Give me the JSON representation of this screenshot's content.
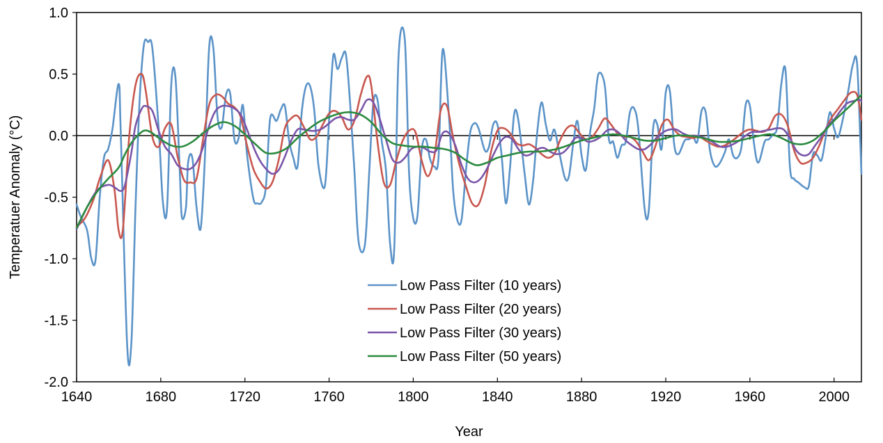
{
  "chart_data": {
    "type": "line",
    "title": "",
    "xlabel": "Year",
    "ylabel": "Temperatuer Anomaly (°C)",
    "xlim": [
      1640,
      2013
    ],
    "ylim": [
      -2.0,
      1.0
    ],
    "x_ticks": [
      1640,
      1680,
      1720,
      1760,
      1800,
      1840,
      1880,
      1920,
      1960,
      2000
    ],
    "x_tick_labels": [
      "1640",
      "1680",
      "1720",
      "1760",
      "1800",
      "1840",
      "1880",
      "1920",
      "1960",
      "2000"
    ],
    "y_ticks": [
      1.0,
      0.5,
      0.0,
      -0.5,
      -1.0,
      -1.5,
      -2.0
    ],
    "y_tick_labels": [
      "1.0",
      "0.5",
      "0.0",
      "-0.5",
      "-1.0",
      "-1.5",
      "-2.0"
    ],
    "grid": false,
    "zero_line": true,
    "legend_position": "center-bottom",
    "series": [
      {
        "name": "Low Pass Filter (10 years)",
        "color": "#5b93c8",
        "x": [
          1640,
          1642,
          1645,
          1647,
          1649,
          1651,
          1653,
          1655,
          1657,
          1660,
          1661,
          1664,
          1666,
          1668,
          1670,
          1672,
          1674,
          1676,
          1679,
          1681,
          1683,
          1685,
          1687,
          1689,
          1690,
          1692,
          1693,
          1695,
          1697,
          1699,
          1701,
          1703,
          1705,
          1707,
          1709,
          1711,
          1713,
          1715,
          1717,
          1719,
          1721,
          1724,
          1726,
          1728,
          1730,
          1732,
          1735,
          1737,
          1739,
          1741,
          1743,
          1745,
          1747,
          1749,
          1751,
          1753,
          1755,
          1758,
          1760,
          1762,
          1764,
          1766,
          1768,
          1770,
          1772,
          1774,
          1777,
          1779,
          1781,
          1783,
          1785,
          1787,
          1789,
          1791,
          1793,
          1796,
          1798,
          1800,
          1802,
          1804,
          1806,
          1808,
          1810,
          1812,
          1814,
          1817,
          1819,
          1821,
          1823,
          1825,
          1827,
          1829,
          1831,
          1834,
          1836,
          1838,
          1840,
          1842,
          1844,
          1846,
          1848,
          1850,
          1853,
          1855,
          1857,
          1859,
          1861,
          1863,
          1865,
          1867,
          1869,
          1872,
          1874,
          1876,
          1878,
          1880,
          1882,
          1884,
          1886,
          1888,
          1891,
          1893,
          1895,
          1897,
          1899,
          1901,
          1903,
          1905,
          1907,
          1910,
          1912,
          1914,
          1916,
          1918,
          1920,
          1922,
          1924,
          1926,
          1929,
          1931,
          1933,
          1935,
          1937,
          1939,
          1941,
          1943,
          1945,
          1948,
          1950,
          1952,
          1954,
          1956,
          1958,
          1960,
          1962,
          1964,
          1967,
          1969,
          1971,
          1973,
          1975,
          1977,
          1979,
          1981,
          1983,
          1986,
          1988,
          1990,
          1992,
          1994,
          1996,
          1998,
          2000,
          2002,
          2005,
          2007,
          2009,
          2011,
          2013
        ],
        "values": [
          -0.56,
          -0.66,
          -0.77,
          -1.0,
          -1.01,
          -0.5,
          -0.18,
          -0.11,
          0.05,
          0.42,
          0.01,
          -1.69,
          -1.69,
          -0.58,
          0.3,
          0.74,
          0.76,
          0.71,
          0.06,
          -0.54,
          -0.59,
          0.42,
          0.47,
          -0.28,
          -0.66,
          -0.58,
          -0.22,
          -0.18,
          -0.58,
          -0.75,
          -0.17,
          0.72,
          0.71,
          0.15,
          0.07,
          0.33,
          0.34,
          -0.03,
          -0.02,
          0.25,
          -0.15,
          -0.51,
          -0.55,
          -0.54,
          -0.41,
          0.14,
          0.12,
          0.21,
          0.24,
          -0.04,
          -0.18,
          -0.25,
          0.19,
          0.4,
          0.4,
          0.2,
          -0.25,
          -0.41,
          0.13,
          0.65,
          0.54,
          0.63,
          0.66,
          0.26,
          -0.27,
          -0.86,
          -0.89,
          -0.32,
          0.26,
          0.29,
          -0.04,
          -0.28,
          -0.88,
          -0.91,
          0.64,
          0.78,
          -0.3,
          -0.67,
          -0.65,
          -0.12,
          -0.03,
          -0.19,
          -0.25,
          -0.18,
          0.7,
          0.15,
          -0.45,
          -0.69,
          -0.68,
          -0.29,
          0.02,
          0.1,
          0.06,
          -0.12,
          -0.09,
          0.09,
          0.09,
          -0.16,
          -0.55,
          -0.26,
          0.18,
          0.12,
          -0.32,
          -0.56,
          -0.36,
          0.04,
          0.27,
          0.09,
          -0.04,
          0.05,
          -0.1,
          -0.34,
          -0.33,
          -0.07,
          0.12,
          -0.16,
          -0.28,
          0.02,
          0.22,
          0.5,
          0.41,
          -0.03,
          -0.05,
          -0.18,
          -0.08,
          -0.05,
          0.19,
          0.22,
          0.05,
          -0.6,
          -0.6,
          0.06,
          0.09,
          -0.11,
          0.35,
          0.36,
          -0.07,
          -0.15,
          -0.04,
          -0.03,
          -0.01,
          -0.05,
          0.2,
          0.19,
          -0.12,
          -0.24,
          -0.24,
          -0.14,
          -0.03,
          -0.16,
          -0.18,
          -0.09,
          0.25,
          0.24,
          -0.07,
          -0.22,
          -0.05,
          -0.03,
          0.01,
          0.07,
          0.43,
          0.52,
          -0.25,
          -0.35,
          -0.38,
          -0.42,
          -0.41,
          -0.15,
          -0.16,
          -0.2,
          -0.02,
          0.19,
          0.06,
          -0.01,
          0.2,
          0.39,
          0.58,
          0.57,
          -0.31
        ]
      },
      {
        "name": "Low Pass Filter (20 years)",
        "color": "#c8574e",
        "x": [
          1640,
          1644,
          1648,
          1651,
          1655,
          1658,
          1660,
          1662,
          1665,
          1668,
          1671,
          1673,
          1676,
          1679,
          1682,
          1685,
          1688,
          1691,
          1694,
          1697,
          1700,
          1703,
          1706,
          1709,
          1712,
          1715,
          1718,
          1721,
          1724,
          1727,
          1730,
          1733,
          1736,
          1739,
          1742,
          1745,
          1748,
          1751,
          1754,
          1757,
          1760,
          1763,
          1766,
          1769,
          1772,
          1775,
          1778,
          1780,
          1783,
          1786,
          1789,
          1792,
          1795,
          1798,
          1801,
          1804,
          1807,
          1810,
          1813,
          1816,
          1819,
          1822,
          1825,
          1828,
          1831,
          1834,
          1837,
          1840,
          1843,
          1846,
          1849,
          1852,
          1855,
          1858,
          1861,
          1864,
          1867,
          1870,
          1873,
          1876,
          1879,
          1882,
          1885,
          1888,
          1891,
          1894,
          1897,
          1900,
          1903,
          1906,
          1909,
          1912,
          1915,
          1918,
          1921,
          1924,
          1927,
          1930,
          1933,
          1936,
          1939,
          1942,
          1945,
          1948,
          1951,
          1954,
          1957,
          1960,
          1963,
          1966,
          1969,
          1972,
          1975,
          1978,
          1981,
          1984,
          1987,
          1990,
          1993,
          1996,
          1999,
          2002,
          2005,
          2008,
          2011,
          2013
        ],
        "values": [
          -0.74,
          -0.67,
          -0.52,
          -0.35,
          -0.2,
          -0.44,
          -0.77,
          -0.76,
          -0.01,
          0.41,
          0.5,
          0.35,
          -0.01,
          -0.09,
          0.06,
          0.09,
          -0.17,
          -0.36,
          -0.38,
          -0.35,
          -0.04,
          0.25,
          0.33,
          0.32,
          0.26,
          0.23,
          0.15,
          -0.08,
          -0.27,
          -0.37,
          -0.43,
          -0.38,
          -0.2,
          0.06,
          0.14,
          0.16,
          0.07,
          -0.03,
          -0.01,
          0.09,
          0.18,
          0.2,
          0.15,
          0.05,
          0.12,
          0.33,
          0.48,
          0.41,
          -0.05,
          -0.38,
          -0.4,
          -0.2,
          -0.04,
          0.04,
          0.03,
          -0.2,
          -0.33,
          -0.17,
          0.2,
          0.24,
          -0.02,
          -0.24,
          -0.41,
          -0.55,
          -0.56,
          -0.4,
          -0.13,
          0.04,
          0.06,
          0.02,
          -0.06,
          -0.08,
          -0.07,
          -0.1,
          -0.15,
          -0.18,
          -0.15,
          -0.03,
          0.06,
          0.08,
          0.02,
          -0.03,
          -0.01,
          0.06,
          0.14,
          0.09,
          0.02,
          -0.01,
          -0.01,
          -0.05,
          -0.13,
          -0.2,
          -0.09,
          0.08,
          0.13,
          0.05,
          0.0,
          -0.01,
          -0.02,
          -0.01,
          -0.04,
          -0.07,
          -0.09,
          -0.08,
          -0.05,
          -0.01,
          0.03,
          0.05,
          0.04,
          0.03,
          0.06,
          0.16,
          0.17,
          0.08,
          -0.12,
          -0.22,
          -0.22,
          -0.18,
          -0.08,
          0.05,
          0.15,
          0.22,
          0.29,
          0.35,
          0.33,
          0.13
        ]
      },
      {
        "name": "Low Pass Filter (30 years)",
        "color": "#7a55a8",
        "x": [
          1640,
          1645,
          1650,
          1655,
          1658,
          1661,
          1663,
          1666,
          1668,
          1671,
          1673,
          1676,
          1679,
          1682,
          1685,
          1688,
          1691,
          1694,
          1697,
          1700,
          1703,
          1706,
          1709,
          1712,
          1715,
          1718,
          1721,
          1724,
          1727,
          1730,
          1733,
          1736,
          1739,
          1742,
          1745,
          1748,
          1751,
          1754,
          1757,
          1760,
          1763,
          1766,
          1769,
          1772,
          1775,
          1778,
          1781,
          1784,
          1787,
          1790,
          1793,
          1796,
          1799,
          1802,
          1805,
          1808,
          1811,
          1814,
          1817,
          1820,
          1823,
          1826,
          1829,
          1832,
          1835,
          1838,
          1841,
          1844,
          1847,
          1850,
          1853,
          1856,
          1859,
          1862,
          1865,
          1868,
          1871,
          1874,
          1877,
          1880,
          1883,
          1886,
          1889,
          1892,
          1895,
          1898,
          1901,
          1904,
          1907,
          1910,
          1913,
          1916,
          1919,
          1922,
          1925,
          1928,
          1931,
          1934,
          1937,
          1940,
          1943,
          1946,
          1949,
          1952,
          1955,
          1958,
          1961,
          1964,
          1967,
          1970,
          1973,
          1976,
          1979,
          1982,
          1985,
          1988,
          1991,
          1994,
          1997,
          2000,
          2003,
          2006,
          2009,
          2012,
          2013
        ],
        "values": [
          -0.76,
          -0.58,
          -0.44,
          -0.4,
          -0.42,
          -0.45,
          -0.4,
          -0.14,
          0.08,
          0.22,
          0.24,
          0.2,
          0.04,
          -0.09,
          -0.15,
          -0.24,
          -0.27,
          -0.27,
          -0.22,
          -0.1,
          0.08,
          0.2,
          0.24,
          0.24,
          0.22,
          0.17,
          0.05,
          -0.09,
          -0.2,
          -0.27,
          -0.31,
          -0.28,
          -0.17,
          -0.04,
          0.05,
          0.05,
          0.04,
          0.04,
          0.06,
          0.1,
          0.14,
          0.15,
          0.13,
          0.13,
          0.2,
          0.29,
          0.27,
          0.14,
          -0.03,
          -0.19,
          -0.22,
          -0.18,
          -0.11,
          -0.09,
          -0.1,
          -0.13,
          -0.12,
          0.02,
          0.02,
          -0.08,
          -0.24,
          -0.35,
          -0.38,
          -0.35,
          -0.27,
          -0.16,
          -0.06,
          -0.01,
          -0.03,
          -0.11,
          -0.16,
          -0.15,
          -0.11,
          -0.1,
          -0.13,
          -0.15,
          -0.14,
          -0.09,
          -0.02,
          -0.02,
          -0.05,
          -0.04,
          -0.01,
          0.04,
          0.05,
          0.02,
          -0.04,
          -0.08,
          -0.11,
          -0.11,
          -0.07,
          -0.01,
          0.03,
          0.05,
          0.05,
          0.02,
          0.0,
          0.0,
          -0.01,
          -0.03,
          -0.06,
          -0.09,
          -0.09,
          -0.07,
          -0.04,
          0.0,
          0.03,
          0.03,
          0.04,
          0.05,
          0.06,
          0.05,
          -0.02,
          -0.12,
          -0.16,
          -0.15,
          -0.08,
          -0.01,
          0.08,
          0.13,
          0.2,
          0.26,
          0.28,
          0.29,
          0.28
        ]
      },
      {
        "name": "Low Pass Filter (50 years)",
        "color": "#2a8a3e",
        "x": [
          1640,
          1645,
          1650,
          1655,
          1660,
          1663,
          1666,
          1669,
          1672,
          1675,
          1680,
          1685,
          1690,
          1695,
          1700,
          1705,
          1710,
          1715,
          1720,
          1725,
          1730,
          1735,
          1740,
          1745,
          1750,
          1755,
          1760,
          1765,
          1770,
          1775,
          1780,
          1785,
          1790,
          1795,
          1800,
          1805,
          1810,
          1815,
          1820,
          1825,
          1830,
          1835,
          1840,
          1845,
          1850,
          1855,
          1860,
          1865,
          1870,
          1875,
          1880,
          1885,
          1890,
          1895,
          1900,
          1905,
          1910,
          1915,
          1920,
          1925,
          1930,
          1935,
          1940,
          1945,
          1950,
          1955,
          1960,
          1965,
          1970,
          1975,
          1980,
          1985,
          1990,
          1995,
          2000,
          2005,
          2010,
          2013
        ],
        "values": [
          -0.75,
          -0.58,
          -0.45,
          -0.35,
          -0.26,
          -0.15,
          -0.06,
          0.0,
          0.04,
          0.03,
          -0.03,
          -0.08,
          -0.09,
          -0.05,
          0.02,
          0.08,
          0.11,
          0.08,
          0.01,
          -0.07,
          -0.14,
          -0.14,
          -0.1,
          -0.02,
          0.05,
          0.11,
          0.15,
          0.18,
          0.19,
          0.17,
          0.11,
          0.01,
          -0.06,
          -0.08,
          -0.09,
          -0.09,
          -0.1,
          -0.11,
          -0.14,
          -0.2,
          -0.24,
          -0.22,
          -0.18,
          -0.16,
          -0.14,
          -0.13,
          -0.13,
          -0.12,
          -0.1,
          -0.07,
          -0.04,
          -0.02,
          0.0,
          0.01,
          0.0,
          -0.02,
          -0.04,
          -0.04,
          -0.02,
          0.0,
          0.0,
          -0.01,
          -0.03,
          -0.05,
          -0.05,
          -0.04,
          -0.02,
          0.0,
          0.01,
          -0.02,
          -0.06,
          -0.07,
          -0.04,
          0.03,
          0.12,
          0.2,
          0.28,
          0.33
        ]
      }
    ]
  }
}
